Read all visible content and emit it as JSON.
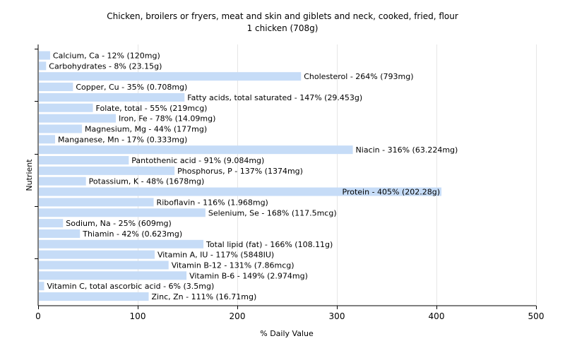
{
  "chart_data": {
    "type": "bar",
    "orientation": "horizontal",
    "title": "Chicken, broilers or fryers, meat and skin and giblets and neck, cooked, fried, flour",
    "subtitle": "1 chicken (708g)",
    "xlabel": "% Daily Value",
    "ylabel": "Nutrient",
    "xlim": [
      0,
      500
    ],
    "xticks": [
      0,
      100,
      200,
      300,
      400,
      500
    ],
    "grid": "vertical",
    "bar_color": "#c6dcf7",
    "categories": [
      "Calcium, Ca",
      "Carbohydrates",
      "Cholesterol",
      "Copper, Cu",
      "Fatty acids, total saturated",
      "Folate, total",
      "Iron, Fe",
      "Magnesium, Mg",
      "Manganese, Mn",
      "Niacin",
      "Pantothenic acid",
      "Phosphorus, P",
      "Potassium, K",
      "Protein",
      "Riboflavin",
      "Selenium, Se",
      "Sodium, Na",
      "Thiamin",
      "Total lipid (fat)",
      "Vitamin A, IU",
      "Vitamin B-12",
      "Vitamin B-6",
      "Vitamin C, total ascorbic acid",
      "Zinc, Zn"
    ],
    "values": [
      12,
      8,
      264,
      35,
      147,
      55,
      78,
      44,
      17,
      316,
      91,
      137,
      48,
      405,
      116,
      168,
      25,
      42,
      166,
      117,
      131,
      149,
      6,
      111
    ],
    "labels": [
      "Calcium, Ca - 12% (120mg)",
      "Carbohydrates - 8% (23.15g)",
      "Cholesterol - 264% (793mg)",
      "Copper, Cu - 35% (0.708mg)",
      "Fatty acids, total saturated - 147% (29.453g)",
      "Folate, total - 55% (219mcg)",
      "Iron, Fe - 78% (14.09mg)",
      "Magnesium, Mg - 44% (177mg)",
      "Manganese, Mn - 17% (0.333mg)",
      "Niacin - 316% (63.224mg)",
      "Pantothenic acid - 91% (9.084mg)",
      "Phosphorus, P - 137% (1374mg)",
      "Potassium, K - 48% (1678mg)",
      "Protein - 405% (202.28g)",
      "Riboflavin - 116% (1.968mg)",
      "Selenium, Se - 168% (117.5mcg)",
      "Sodium, Na - 25% (609mg)",
      "Thiamin - 42% (0.623mg)",
      "Total lipid (fat) - 166% (108.11g)",
      "Vitamin A, IU - 117% (5848IU)",
      "Vitamin B-12 - 131% (7.86mcg)",
      "Vitamin B-6 - 149% (2.974mg)",
      "Vitamin C, total ascorbic acid - 6% (3.5mg)",
      "Zinc, Zn - 111% (16.71mg)"
    ]
  }
}
